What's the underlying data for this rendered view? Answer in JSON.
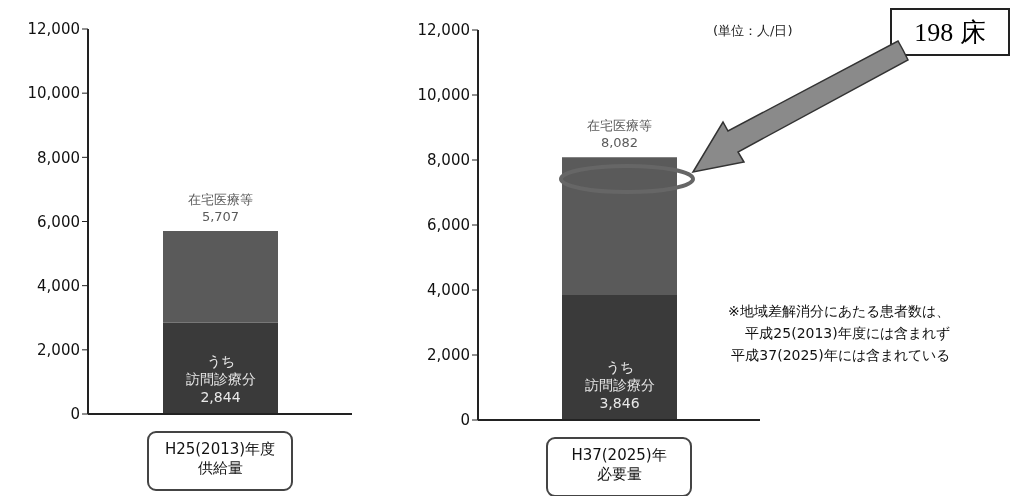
{
  "chart_data": [
    {
      "type": "bar",
      "categories": [
        "H25(2013)年度供給量"
      ],
      "stacked": true,
      "ylim": [
        0,
        12000
      ],
      "yticks": [
        {
          "value": 0,
          "label": "0"
        },
        {
          "value": 2000,
          "label": "2,000"
        },
        {
          "value": 4000,
          "label": "4,000"
        },
        {
          "value": 6000,
          "label": "6,000"
        },
        {
          "value": 8000,
          "label": "8,000"
        },
        {
          "value": 10000,
          "label": "10,000"
        },
        {
          "value": 12000,
          "label": "12,000"
        }
      ],
      "grid": false,
      "legend": false,
      "series": [
        {
          "name": "うち訪問診療分",
          "color": "#3a3a3a",
          "values": [
            2844
          ],
          "value_labels": [
            "2,844"
          ]
        },
        {
          "name": "在宅医療等",
          "color": "#5a5a5a",
          "values": [
            2863
          ]
        }
      ],
      "totals": [
        "5,707"
      ]
    },
    {
      "type": "bar",
      "categories": [
        "H37(2025)年必要量"
      ],
      "stacked": true,
      "ylim": [
        0,
        12000
      ],
      "yticks": [
        {
          "value": 0,
          "label": "0"
        },
        {
          "value": 2000,
          "label": "2,000"
        },
        {
          "value": 4000,
          "label": "4,000"
        },
        {
          "value": 6000,
          "label": "6,000"
        },
        {
          "value": 8000,
          "label": "8,000"
        },
        {
          "value": 10000,
          "label": "10,000"
        },
        {
          "value": 12000,
          "label": "12,000"
        }
      ],
      "grid": false,
      "legend": false,
      "series": [
        {
          "name": "うち訪問診療分",
          "color": "#3a3a3a",
          "values": [
            3846
          ],
          "value_labels": [
            "3,846"
          ]
        },
        {
          "name": "在宅医療等",
          "color": "#5a5a5a",
          "values": [
            4236
          ]
        }
      ],
      "totals": [
        "8,082"
      ],
      "annotations": [
        "(単位：人/日)",
        "198 床",
        "※地域差解消分にあたる患者数は、平成25(2013)年度には含まれず平成37(2025)年には含まれている"
      ]
    }
  ]
}
